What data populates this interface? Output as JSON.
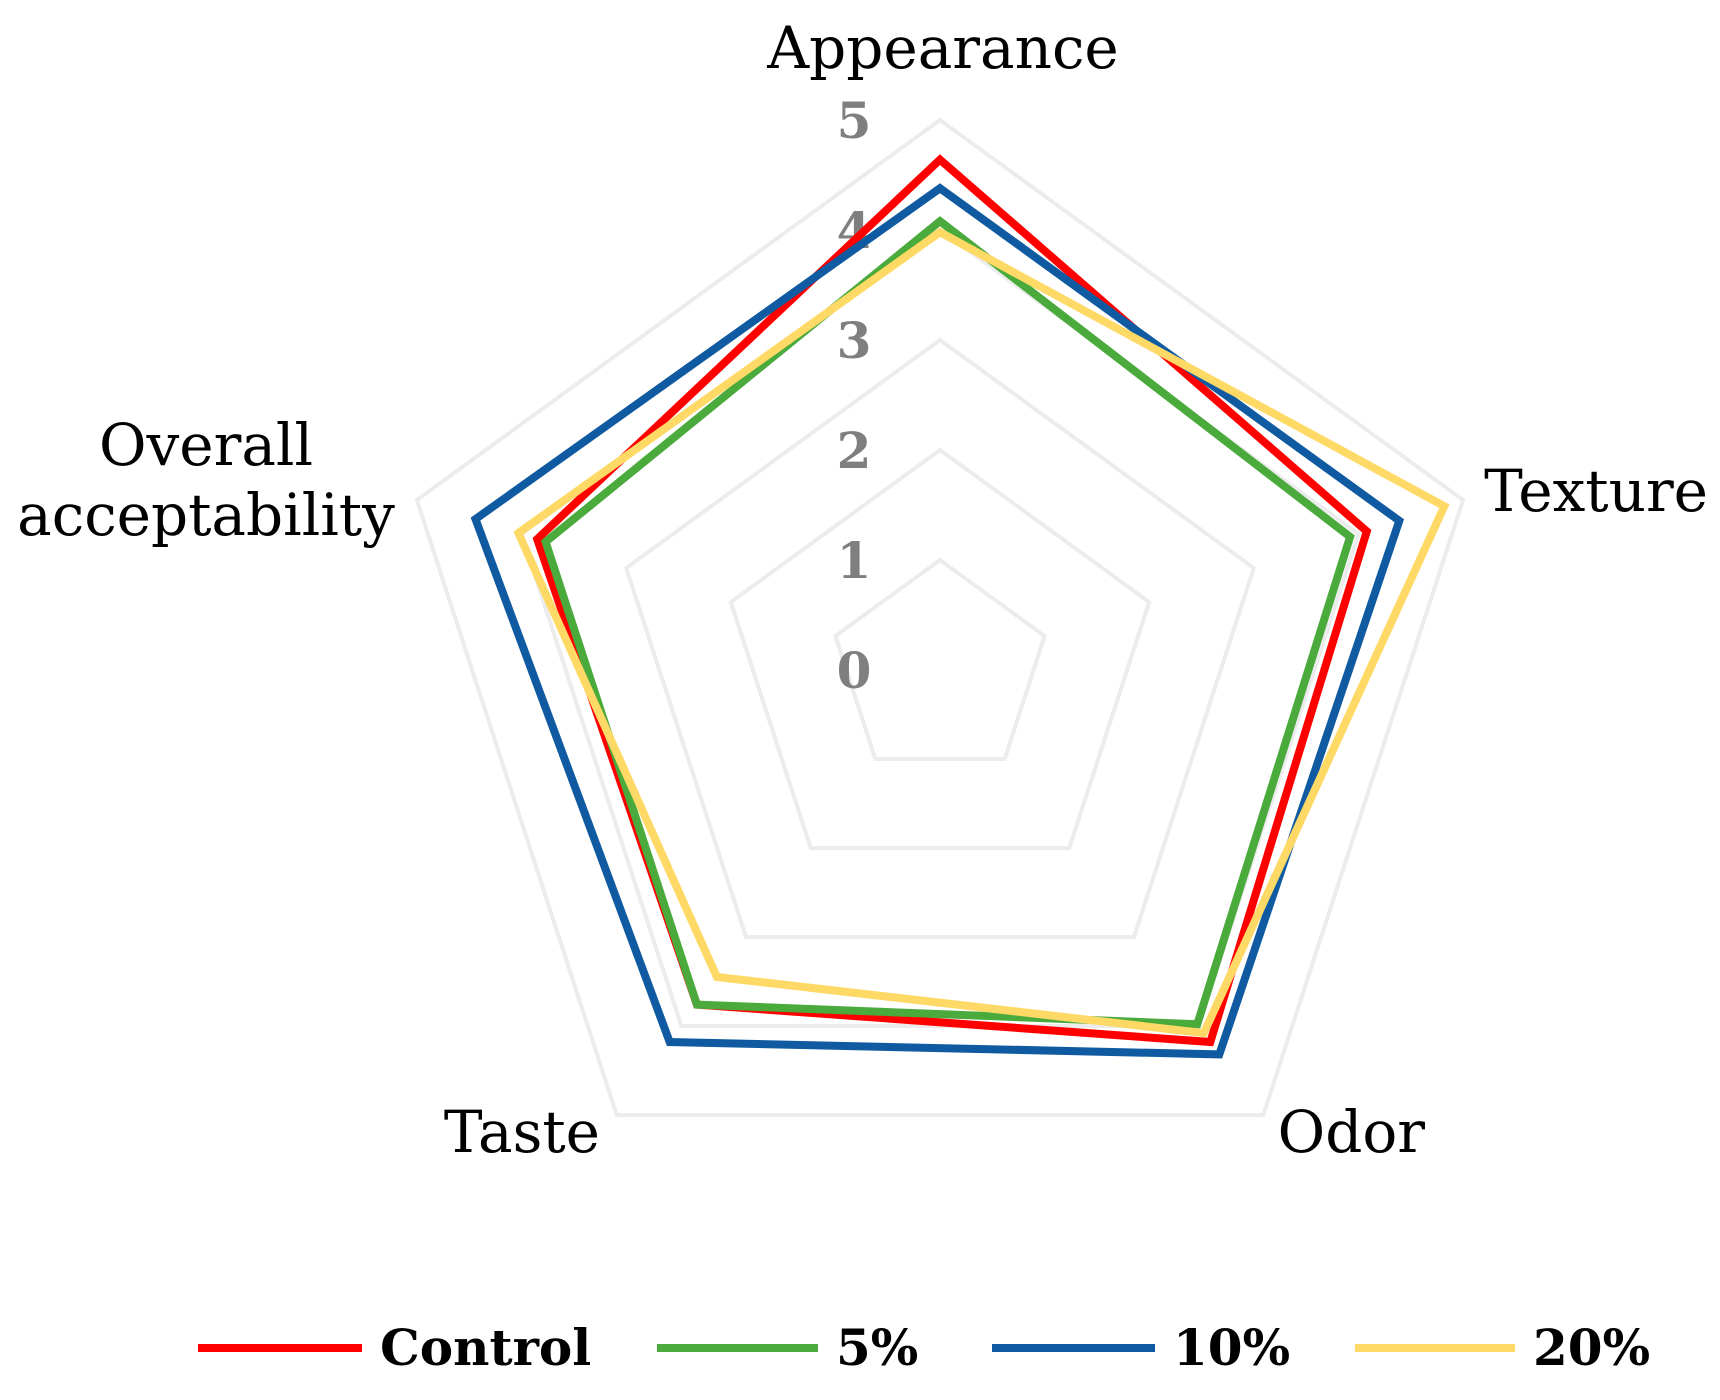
{
  "chart_data": {
    "type": "radar",
    "title": "",
    "axes": [
      "Appearance",
      "Texture",
      "Odor",
      "Taste",
      "Overall acceptability"
    ],
    "axis_label_lines": [
      [
        "Appearance"
      ],
      [
        "Texture"
      ],
      [
        "Odor"
      ],
      [
        "Taste"
      ],
      [
        "Overall",
        "acceptability"
      ]
    ],
    "ticks": [
      "0",
      "1",
      "2",
      "3",
      "4",
      "5"
    ],
    "range": [
      0,
      5
    ],
    "grid": true,
    "legend_position": "bottom",
    "series": [
      {
        "name": "Control",
        "color": "#ff0000",
        "values": [
          4.64,
          4.08,
          4.18,
          3.76,
          3.85
        ]
      },
      {
        "name": "5%",
        "color": "#4aaa3c",
        "values": [
          4.08,
          3.92,
          3.98,
          3.76,
          3.77
        ]
      },
      {
        "name": "10%",
        "color": "#0f5aa0",
        "values": [
          4.38,
          4.39,
          4.32,
          4.18,
          4.44
        ]
      },
      {
        "name": "20%",
        "color": "#ffd966",
        "values": [
          3.98,
          4.82,
          4.08,
          3.45,
          4.03
        ]
      }
    ]
  }
}
